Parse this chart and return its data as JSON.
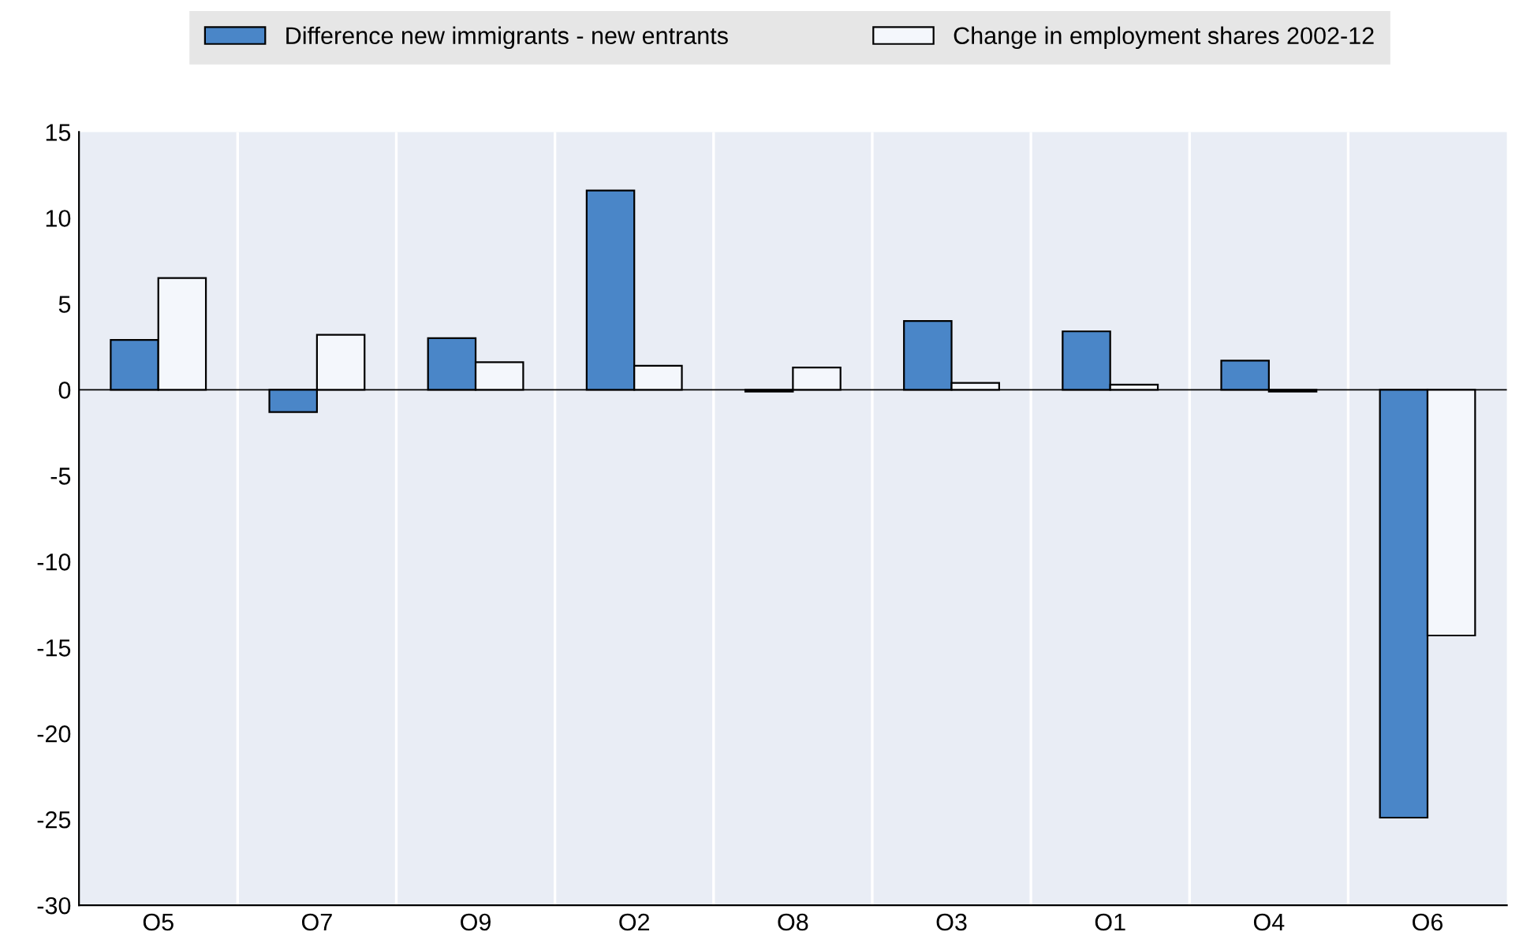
{
  "chart_data": {
    "type": "bar",
    "categories": [
      "O5",
      "O7",
      "O9",
      "O2",
      "O8",
      "O3",
      "O1",
      "O4",
      "O6"
    ],
    "series": [
      {
        "name": "Difference new immigrants - new entrants",
        "color": "#4a86c8",
        "values": [
          2.9,
          -1.3,
          3.0,
          11.6,
          -0.1,
          4.0,
          3.4,
          1.7,
          -24.9
        ]
      },
      {
        "name": "Change in employment shares 2002-12",
        "color": "#f4f7fc",
        "values": [
          6.5,
          3.2,
          1.6,
          1.4,
          1.3,
          0.4,
          0.3,
          -0.1,
          -14.3
        ]
      }
    ],
    "ylim": [
      -30,
      15
    ],
    "yticks": [
      -30,
      -25,
      -20,
      -15,
      -10,
      -5,
      0,
      5,
      10,
      15
    ],
    "grid": "x",
    "legend": "top"
  }
}
